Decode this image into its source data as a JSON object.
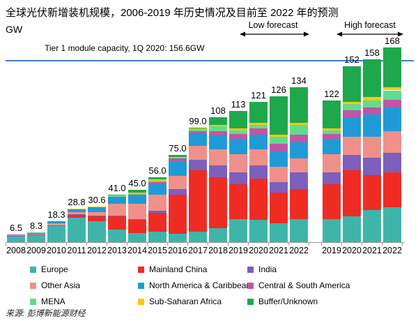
{
  "header": {
    "title": "全球光伏新增装机规模，2006-2019 年历史情况及目前至 2022 年的预测",
    "unit": "GW",
    "low_forecast_label": "Low forecast",
    "high_forecast_label": "High forecast"
  },
  "reference_line": {
    "label": "Tier 1 module capacity, 1Q 2020: 156.6GW",
    "value_gw": 156.6,
    "color": "#3e7dc8"
  },
  "source": "来源: 彭博新能源财经",
  "legend": [
    {
      "label": "Europe",
      "color": "#3fb5aa"
    },
    {
      "label": "Mainland China",
      "color": "#ee2c24"
    },
    {
      "label": "India",
      "color": "#7d5fbe"
    },
    {
      "label": "Other Asia",
      "color": "#f0908a"
    },
    {
      "label": "North America & Caribbean",
      "color": "#1e9bd7"
    },
    {
      "label": "Central & South America",
      "color": "#bf56a5"
    },
    {
      "label": "MENA",
      "color": "#5fdd8c"
    },
    {
      "label": "Sub-Saharan Africa",
      "color": "#ffc70f"
    },
    {
      "label": "Buffer/Unknown",
      "color": "#1ea84c"
    }
  ],
  "chart_data": {
    "type": "bar",
    "stacked": true,
    "title": "全球光伏新增装机规模，2006-2019 年历史情况及目前至 2022 年的预测",
    "ylabel": "GW",
    "ylim": [
      0,
      175
    ],
    "grid": false,
    "legend_position": "bottom",
    "reference_line_gw": 156.6,
    "groups": [
      {
        "name": "historical-and-low-forecast",
        "annotation": "Low forecast (2020-2022)",
        "categories": [
          "2008",
          "2009",
          "2010",
          "2011",
          "2012",
          "2013",
          "2014",
          "2015",
          "2016",
          "2017",
          "2018",
          "2019",
          "2020",
          "2021",
          "2022"
        ],
        "total_labels": [
          "6.5",
          "8.3",
          "18.3",
          "28.8",
          "30.6",
          "41.0",
          "45.0",
          "56.0",
          "75.0",
          "99.0",
          "108",
          "113",
          "121",
          "126",
          "134"
        ],
        "totals": [
          6.5,
          8.3,
          18.3,
          28.8,
          30.6,
          41.0,
          45.0,
          56.0,
          75.0,
          99.0,
          108,
          113,
          121,
          126,
          134
        ]
      },
      {
        "name": "high-forecast",
        "annotation": "High forecast (2019-2022)",
        "categories": [
          "2019",
          "2020",
          "2021",
          "2022"
        ],
        "total_labels": [
          "122",
          "152",
          "158",
          "168"
        ],
        "totals": [
          122,
          152,
          158,
          168
        ]
      }
    ],
    "series": [
      {
        "name": "Europe",
        "color": "#3fb5aa",
        "values_group1": [
          5.5,
          6.3,
          14,
          21,
          18.1,
          11,
          8,
          9,
          7,
          9,
          12,
          20,
          19,
          16,
          20
        ],
        "values_group2": [
          20,
          22,
          28,
          30
        ]
      },
      {
        "name": "Mainland China",
        "color": "#ee2c24",
        "values_group1": [
          0.1,
          0.3,
          0.5,
          2.5,
          4,
          11,
          11,
          16,
          34,
          53,
          44,
          30,
          36,
          27,
          26
        ],
        "values_group2": [
          30,
          40,
          30,
          30
        ]
      },
      {
        "name": "India",
        "color": "#7d5fbe",
        "values_group1": [
          0.05,
          0.1,
          0.1,
          0.5,
          1,
          1,
          1,
          2,
          5,
          9,
          10,
          10,
          11,
          9,
          14
        ],
        "values_group2": [
          10,
          13,
          15,
          17
        ]
      },
      {
        "name": "Other Asia",
        "color": "#f0908a",
        "values_group1": [
          0.4,
          0.8,
          1.7,
          2,
          3,
          10,
          13,
          14,
          11,
          12,
          14,
          16,
          14,
          13,
          12
        ],
        "values_group2": [
          16,
          16,
          18,
          19
        ]
      },
      {
        "name": "North America & Caribbean",
        "color": "#1e9bd7",
        "values_group1": [
          0.4,
          0.7,
          1.5,
          2.3,
          4,
          6,
          7,
          9,
          13,
          11,
          12,
          13,
          13,
          13,
          14
        ],
        "values_group2": [
          13,
          17,
          19,
          20
        ]
      },
      {
        "name": "Central & South America",
        "color": "#bf56a5",
        "values_group1": [
          0.05,
          0.05,
          0.1,
          0.2,
          0.2,
          0.5,
          1,
          2,
          2,
          2,
          4,
          4.5,
          5,
          7,
          7
        ],
        "values_group2": [
          4.5,
          6,
          6,
          7
        ]
      },
      {
        "name": "MENA",
        "color": "#5fdd8c",
        "values_group1": [
          0,
          0.05,
          0.2,
          0.2,
          0.2,
          0.5,
          1,
          1,
          1,
          1.5,
          4,
          3,
          3,
          6,
          8
        ],
        "values_group2": [
          3,
          5,
          6,
          8
        ]
      },
      {
        "name": "Sub-Saharan Africa",
        "color": "#ffc70f",
        "values_group1": [
          0,
          0,
          0.1,
          0.1,
          0.1,
          0.5,
          1,
          1,
          0.5,
          0.5,
          1,
          1.5,
          2,
          2,
          2
        ],
        "values_group2": [
          1.5,
          2,
          3,
          3
        ]
      },
      {
        "name": "Buffer/Unknown",
        "color": "#1ea84c",
        "values_group1": [
          0,
          0,
          0.1,
          0,
          0,
          0.5,
          2,
          2,
          1.5,
          1,
          7,
          15,
          18,
          33,
          31
        ],
        "values_group2": [
          24,
          31,
          33,
          34
        ]
      }
    ]
  }
}
